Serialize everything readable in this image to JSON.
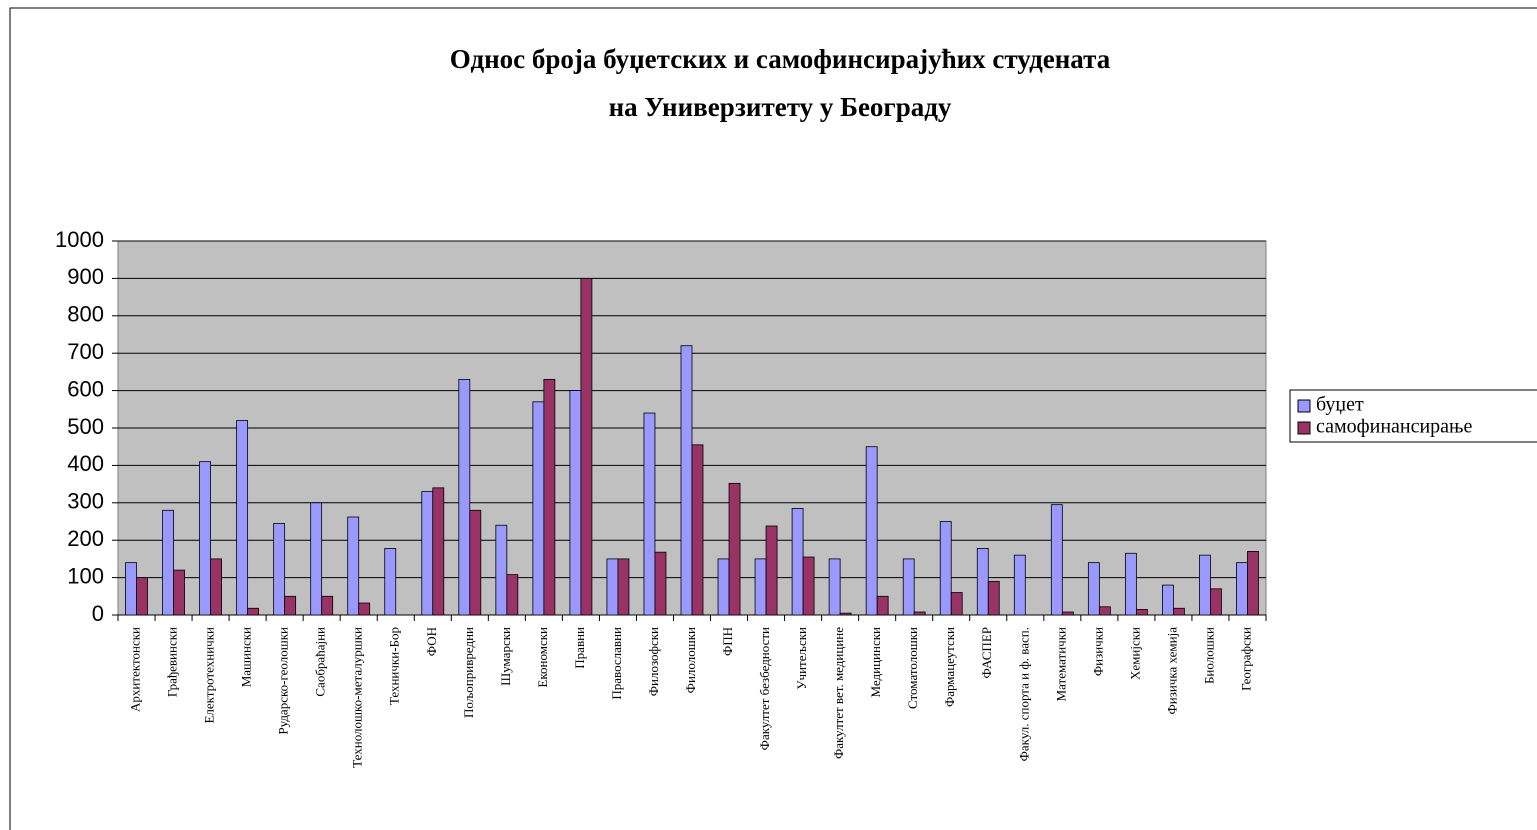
{
  "chart_data": {
    "type": "bar",
    "title": [
      "Однос броја буџетских и самофинсирајућих студената",
      "на Универзитету у Београду"
    ],
    "categories": [
      "Архитектонски",
      "Грађевински",
      "Електротехнички",
      "Машински",
      "Рударско-геолошки",
      "Саобраћајни",
      "Технолошко-металуршки",
      "Технички-Бор",
      "ФОН",
      "Пољопривредни",
      "Шумарски",
      "Економски",
      "Правни",
      "Православни",
      "Филозофски",
      "Филолошки",
      "ФПН",
      "Факултет безбедности",
      "Учитељски",
      "Факултет вет.  медицине",
      "Медицински",
      "Стоматолошки",
      "Фармацеутски",
      "ФАСПЕР",
      "Факул.  спорта и ф. васп.",
      "Математички",
      "Физички",
      "Хемијски",
      "Физичка хемија",
      "Биолошки",
      "Географски"
    ],
    "series": [
      {
        "name": "буџет",
        "color": "#9999ff",
        "values": [
          140,
          280,
          410,
          520,
          245,
          300,
          262,
          178,
          330,
          630,
          240,
          570,
          600,
          150,
          540,
          720,
          150,
          150,
          285,
          150,
          450,
          150,
          250,
          178,
          160,
          295,
          140,
          165,
          80,
          160,
          140
        ]
      },
      {
        "name": "самофинансирање",
        "color": "#993366",
        "values": [
          100,
          120,
          150,
          18,
          50,
          50,
          32,
          0,
          340,
          280,
          108,
          630,
          900,
          150,
          168,
          455,
          352,
          238,
          155,
          5,
          50,
          8,
          60,
          90,
          0,
          8,
          22,
          15,
          18,
          70,
          170
        ]
      }
    ],
    "ylim": [
      0,
      1000
    ],
    "yticks": [
      0,
      100,
      200,
      300,
      400,
      500,
      600,
      700,
      800,
      900,
      1000
    ],
    "grid": true,
    "legend": "right"
  }
}
